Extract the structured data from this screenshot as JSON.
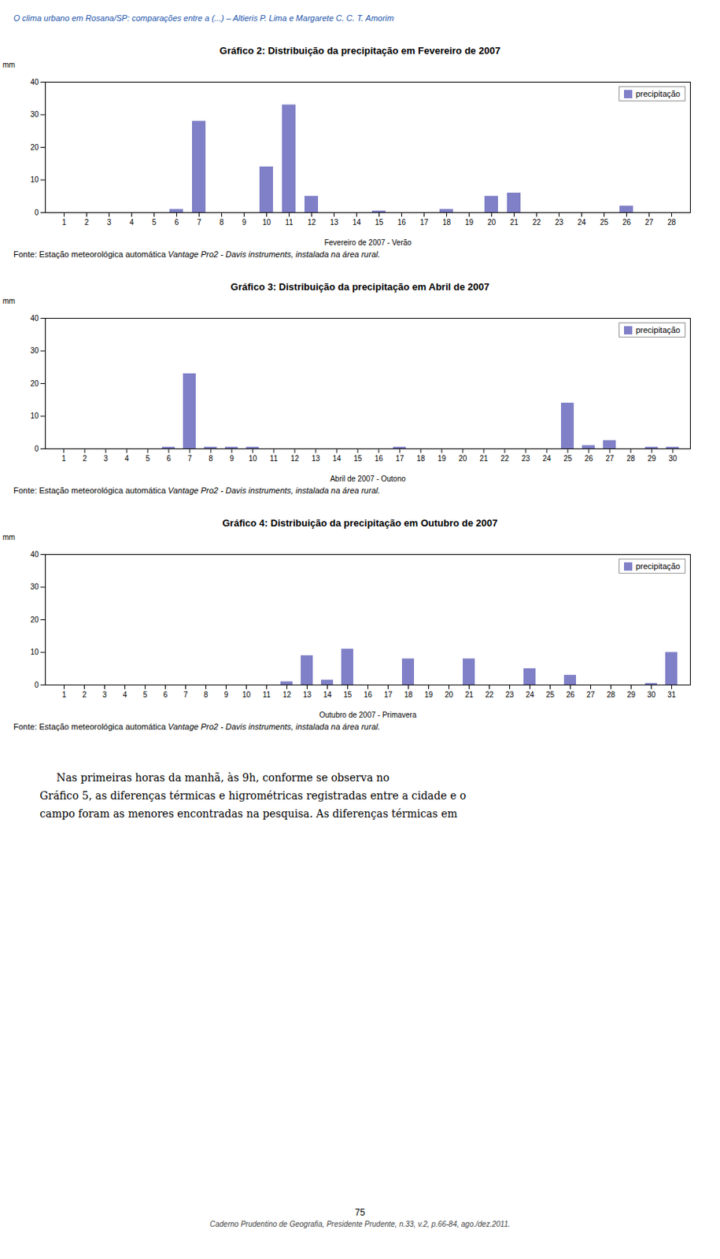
{
  "page_header": "O clima urbano em Rosana/SP: comparações entre a (...) – Altieris P. Lima e Margarete C. C. T. Amorim",
  "page_footer_num": "75",
  "page_footer_text": "Caderno Prudentino de Geografia, Presidente Prudente, n.33, v.2, p.66-84, ago./dez.2011.",
  "source_normal": "Fonte: Estação meteorológica automática ",
  "source_italic": "Vantage Pro2 - Davis instruments, instalada na área rural.",
  "body_text_lines": [
    "     Nas primeiras horas da manhã, às 9h, conforme se observa no",
    "Gráfico 5, as diferenças térmicas e higrométricas registradas entre a cidade e o",
    "campo foram as menores encontradas na pesquisa. As diferenças térmicas em"
  ],
  "chart_data": [
    {
      "type": "bar",
      "title": "Gráfico 2: Distribuição da precipitação em Fevereiro de 2007",
      "xlabel": "Fevereiro de 2007 - Verão",
      "ylabel": "mm",
      "categories": [
        "1",
        "2",
        "3",
        "4",
        "5",
        "6",
        "7",
        "8",
        "9",
        "10",
        "11",
        "12",
        "13",
        "14",
        "15",
        "16",
        "17",
        "18",
        "19",
        "20",
        "21",
        "22",
        "23",
        "24",
        "25",
        "26",
        "27",
        "28"
      ],
      "series": [
        {
          "name": "precipitação",
          "color": "#8080c8",
          "values": [
            0,
            0,
            0,
            0,
            0,
            1,
            28,
            0,
            0,
            14,
            33,
            5,
            0,
            0,
            0.5,
            0,
            0,
            1,
            0,
            5,
            6,
            0,
            0,
            0,
            0,
            2,
            0,
            0
          ]
        }
      ],
      "ylim": [
        0,
        40
      ],
      "yticks": [
        0,
        10,
        20,
        30,
        40
      ],
      "grid": false,
      "legend": "upper right"
    },
    {
      "type": "bar",
      "title": "Gráfico 3: Distribuição da precipitação em Abril de 2007",
      "xlabel": "Abril de 2007 - Outono",
      "ylabel": "mm",
      "categories": [
        "1",
        "2",
        "3",
        "4",
        "5",
        "6",
        "7",
        "8",
        "9",
        "10",
        "11",
        "12",
        "13",
        "14",
        "15",
        "16",
        "17",
        "18",
        "19",
        "20",
        "21",
        "22",
        "23",
        "24",
        "25",
        "26",
        "27",
        "28",
        "29",
        "30"
      ],
      "series": [
        {
          "name": "precipitação",
          "color": "#8080c8",
          "values": [
            0,
            0,
            0,
            0,
            0,
            0.5,
            23,
            0.5,
            0.5,
            0.5,
            0,
            0,
            0,
            0,
            0,
            0,
            0.5,
            0,
            0,
            0,
            0,
            0,
            0,
            0,
            14,
            1,
            2.5,
            0,
            0.5,
            0.5
          ]
        }
      ],
      "ylim": [
        0,
        40
      ],
      "yticks": [
        0,
        10,
        20,
        30,
        40
      ],
      "grid": false,
      "legend": "upper right"
    },
    {
      "type": "bar",
      "title": "Gráfico 4: Distribuição da precipitação em Outubro de 2007",
      "xlabel": "Outubro de 2007 - Primavera",
      "ylabel": "mm",
      "categories": [
        "1",
        "2",
        "3",
        "4",
        "5",
        "6",
        "7",
        "8",
        "9",
        "10",
        "11",
        "12",
        "13",
        "14",
        "15",
        "16",
        "17",
        "18",
        "19",
        "20",
        "21",
        "22",
        "23",
        "24",
        "25",
        "26",
        "27",
        "28",
        "29",
        "30",
        "31"
      ],
      "series": [
        {
          "name": "precipitação",
          "color": "#8080c8",
          "values": [
            0,
            0,
            0,
            0,
            0,
            0,
            0,
            0,
            0,
            0,
            0,
            1,
            9,
            1.5,
            11,
            0,
            0,
            8,
            0,
            0,
            8,
            0,
            0,
            5,
            0,
            3,
            0,
            0,
            0,
            0.5,
            10
          ]
        }
      ],
      "ylim": [
        0,
        40
      ],
      "yticks": [
        0,
        10,
        20,
        30,
        40
      ],
      "grid": false,
      "legend": "upper right"
    }
  ]
}
